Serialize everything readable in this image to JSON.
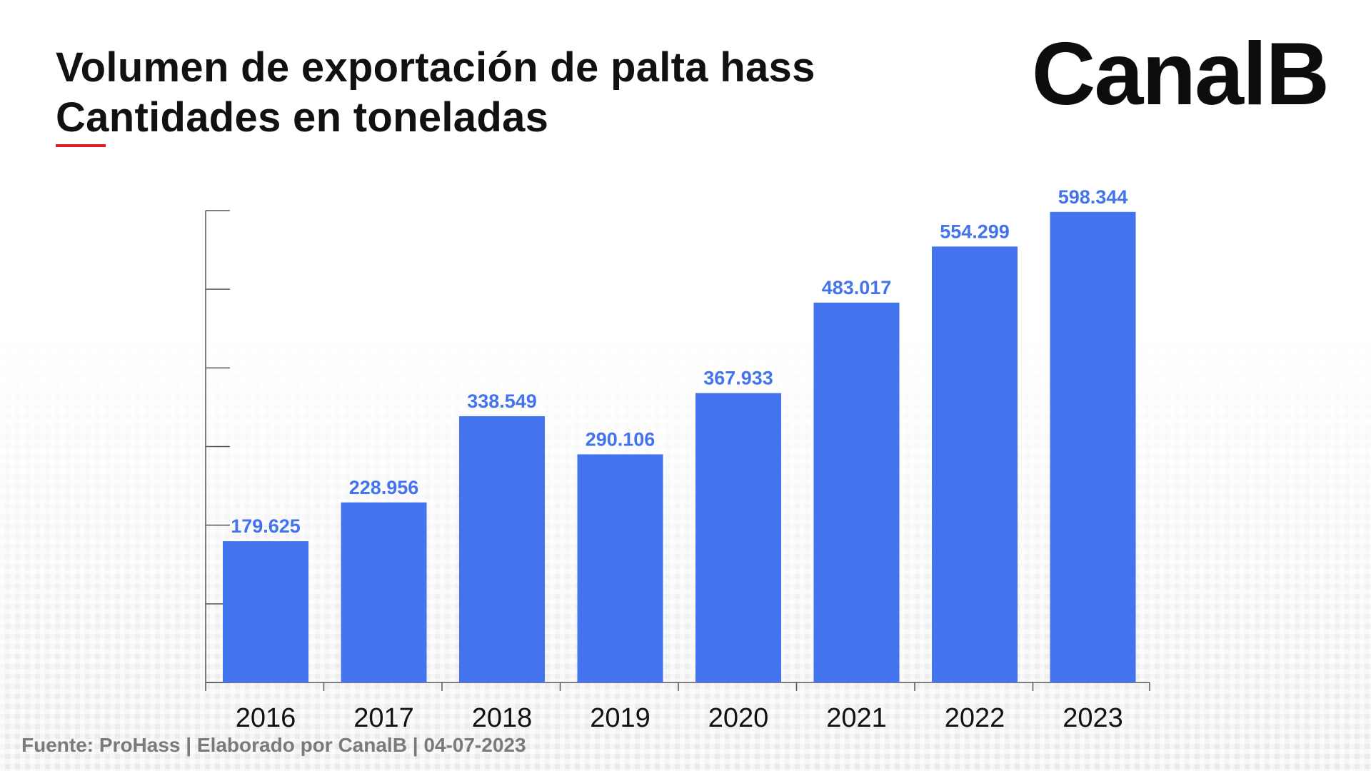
{
  "header": {
    "title_line1": "Volumen de exportación de palta hass",
    "title_line2": "Cantidades en toneladas",
    "brand": "CanalB",
    "accent_color": "#e11b22"
  },
  "footer": {
    "source": "Fuente: ProHass | Elaborado por CanalB | 04-07-2023"
  },
  "chart_data": {
    "type": "bar",
    "title": "Volumen de exportación de palta hass",
    "subtitle": "Cantidades en toneladas",
    "categories": [
      "2016",
      "2017",
      "2018",
      "2019",
      "2020",
      "2021",
      "2022",
      "2023"
    ],
    "values": [
      179625,
      228956,
      338549,
      290106,
      367933,
      483017,
      554299,
      598344
    ],
    "labels": [
      "179.625",
      "228.956",
      "338.549",
      "290.106",
      "367.933",
      "483.017",
      "554.299",
      "598.344"
    ],
    "ylim": [
      0,
      600000
    ],
    "ytick_step": 100000,
    "bar_color": "#4374ee",
    "label_color": "#4374ee",
    "grid": false
  }
}
